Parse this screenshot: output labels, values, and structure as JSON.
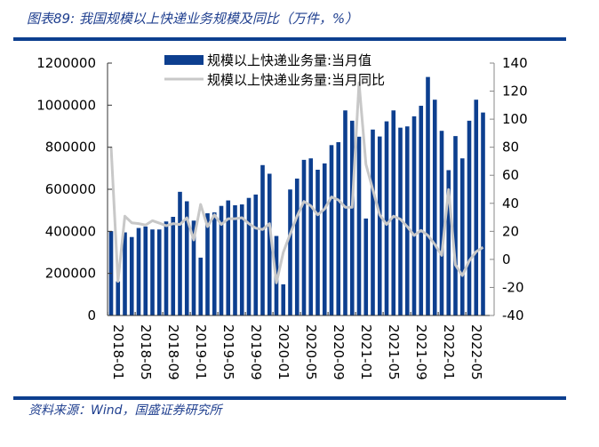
{
  "title": "图表89: 我国规模以上快递业务规模及同比（万件，%）",
  "source": "资料来源：Wind，国盛证券研究所",
  "chart_data": {
    "type": "bar+line",
    "title": "",
    "colors": {
      "bar": "#0d3f8f",
      "line": "#c8c8c8",
      "accent": "#0d3f8f"
    },
    "x": [
      "2018-01",
      "2018-02",
      "2018-03",
      "2018-04",
      "2018-05",
      "2018-06",
      "2018-07",
      "2018-08",
      "2018-09",
      "2018-10",
      "2018-11",
      "2018-12",
      "2019-01",
      "2019-02",
      "2019-03",
      "2019-04",
      "2019-05",
      "2019-06",
      "2019-07",
      "2019-08",
      "2019-09",
      "2019-10",
      "2019-11",
      "2019-12",
      "2020-01",
      "2020-02",
      "2020-03",
      "2020-04",
      "2020-05",
      "2020-06",
      "2020-07",
      "2020-08",
      "2020-09",
      "2020-10",
      "2020-11",
      "2020-12",
      "2021-01",
      "2021-02",
      "2021-03",
      "2021-04",
      "2021-05",
      "2021-06",
      "2021-07",
      "2021-08",
      "2021-09",
      "2021-10",
      "2021-11",
      "2021-12",
      "2022-01",
      "2022-02",
      "2022-03",
      "2022-04",
      "2022-05",
      "2022-06",
      "2022-07"
    ],
    "x_tick_labels": [
      "2018-01",
      "2018-05",
      "2018-09",
      "2019-01",
      "2019-05",
      "2019-09",
      "2020-01",
      "2020-05",
      "2020-09",
      "2021-01",
      "2021-05",
      "2021-09",
      "2022-01",
      "2022-05"
    ],
    "left_axis": {
      "ylim": [
        0,
        1200000
      ],
      "ticks": [
        "0",
        "200000",
        "400000",
        "600000",
        "800000",
        "1000000",
        "1200000"
      ]
    },
    "right_axis": {
      "ylim": [
        -40,
        140
      ],
      "ticks": [
        "-40",
        "-20",
        "0",
        "20",
        "40",
        "60",
        "80",
        "100",
        "120",
        "140"
      ]
    },
    "legend_position": "top-center",
    "grid": false,
    "series": [
      {
        "name": "规模以上快递业务量:当月值",
        "type": "bar",
        "axis": "left",
        "values": [
          401000,
          162000,
          395000,
          373000,
          416000,
          423000,
          409000,
          409000,
          447000,
          469000,
          588000,
          543000,
          451000,
          275000,
          486000,
          490000,
          521000,
          547000,
          524000,
          528000,
          559000,
          575000,
          715000,
          674000,
          378000,
          148000,
          599000,
          651000,
          740000,
          747000,
          693000,
          723000,
          810000,
          824000,
          975000,
          926000,
          850000,
          461000,
          884000,
          851000,
          923000,
          975000,
          893000,
          899000,
          947000,
          997000,
          1134000,
          1026000,
          878000,
          691000,
          853000,
          747000,
          926000,
          1026000,
          965000
        ]
      },
      {
        "name": "规模以上快递业务量:当月同比",
        "type": "line",
        "axis": "right",
        "values": [
          80.4,
          -15.7,
          30.8,
          26.1,
          25.5,
          24.5,
          27.6,
          25.9,
          24,
          25.5,
          24.9,
          29.7,
          13.9,
          39.2,
          23.4,
          31.8,
          24.9,
          29,
          29,
          29.7,
          25.5,
          22.3,
          21.3,
          25.5,
          -16.7,
          5,
          18.1,
          30.8,
          41.3,
          38.2,
          31.8,
          36,
          44.5,
          42.4,
          37.2,
          37.2,
          125.9,
          67.8,
          49.8,
          31.8,
          24.9,
          30.8,
          28.7,
          23.4,
          17.1,
          20.7,
          17.1,
          10.7,
          2.9,
          49.8,
          -4,
          -11.5,
          -1,
          5.5,
          8.6
        ]
      }
    ]
  }
}
